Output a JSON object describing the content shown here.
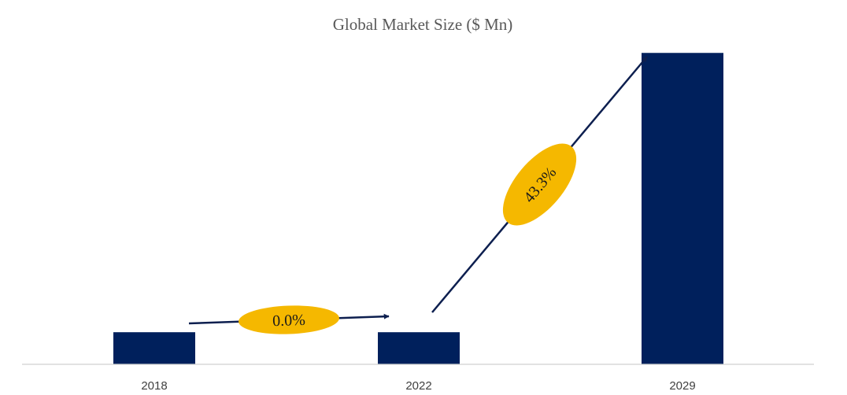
{
  "chart_data": {
    "type": "bar",
    "title": "Global Market Size ($ Mn)",
    "xlabel": "",
    "ylabel": "",
    "categories": [
      "2018",
      "2022",
      "2029"
    ],
    "values": [
      1,
      1,
      9.7
    ],
    "ylim": [
      0,
      10
    ],
    "grid": false,
    "legend": "none",
    "annotations": [
      {
        "from": "2018",
        "to": "2022",
        "label": "0.0%"
      },
      {
        "from": "2022",
        "to": "2029",
        "label": "43.3%"
      }
    ],
    "colors": {
      "bar": "#00205c",
      "arrow": "#0d1f4f",
      "badge": "#f5b800",
      "axis": "#d0d0d0"
    }
  }
}
